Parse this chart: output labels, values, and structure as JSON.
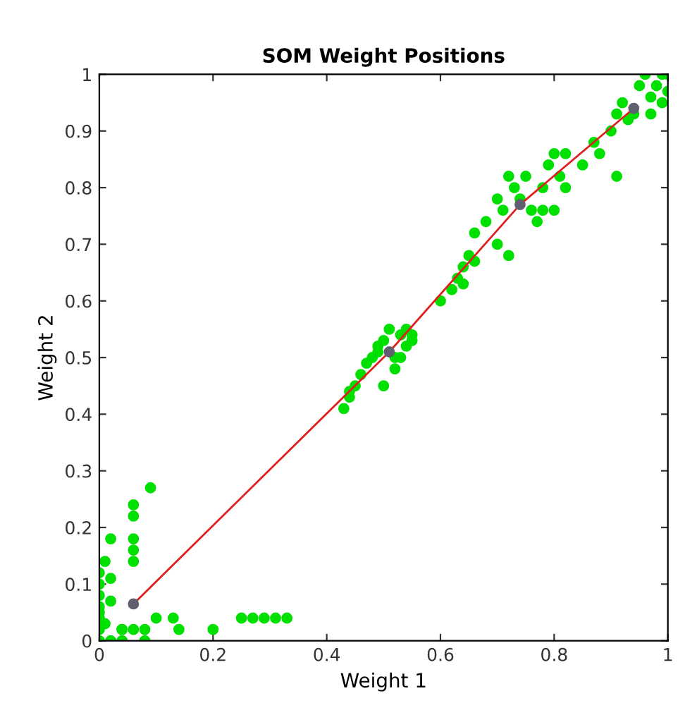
{
  "chart_data": {
    "type": "scatter",
    "title": "SOM Weight Positions",
    "xlabel": "Weight 1",
    "ylabel": "Weight 2",
    "xlim": [
      0,
      1
    ],
    "ylim": [
      0,
      1
    ],
    "xticks": [
      0,
      0.2,
      0.4,
      0.6,
      0.8,
      1
    ],
    "yticks": [
      0,
      0.1,
      0.2,
      0.3,
      0.4,
      0.5,
      0.6,
      0.7,
      0.8,
      0.9,
      1
    ],
    "grid": false,
    "marker": "circle",
    "series": [
      {
        "color": "#00e000",
        "x": [
          0.0,
          0.0,
          0.0,
          0.0,
          0.0,
          0.0,
          0.0,
          0.01,
          0.02,
          0.01,
          0.02,
          0.0,
          0.02,
          0.04,
          0.06,
          0.06,
          0.06,
          0.06,
          0.06,
          0.09,
          0.04,
          0.06,
          0.08,
          0.02,
          0.04,
          0.08,
          0.1,
          0.13,
          0.14,
          0.2,
          0.25,
          0.27,
          0.29,
          0.31,
          0.33,
          0.43,
          0.44,
          0.45,
          0.46,
          0.47,
          0.48,
          0.49,
          0.5,
          0.5,
          0.51,
          0.52,
          0.53,
          0.54,
          0.54,
          0.55,
          0.52,
          0.53,
          0.55,
          0.44,
          0.49,
          0.6,
          0.62,
          0.63,
          0.64,
          0.65,
          0.66,
          0.68,
          0.7,
          0.71,
          0.72,
          0.73,
          0.74,
          0.75,
          0.76,
          0.77,
          0.78,
          0.79,
          0.8,
          0.81,
          0.82,
          0.7,
          0.72,
          0.78,
          0.8,
          0.82,
          0.64,
          0.66,
          0.85,
          0.87,
          0.88,
          0.9,
          0.91,
          0.92,
          0.93,
          0.95,
          0.96,
          0.97,
          0.98,
          0.99,
          1.0,
          0.97,
          0.99,
          1.0,
          0.91,
          0.94
        ],
        "values": [
          0.0,
          0.02,
          0.04,
          0.06,
          0.08,
          0.1,
          0.12,
          0.14,
          0.18,
          0.03,
          0.07,
          0.05,
          0.11,
          0.02,
          0.24,
          0.22,
          0.18,
          0.16,
          0.14,
          0.27,
          0.0,
          0.02,
          0.0,
          0.0,
          0.02,
          0.02,
          0.04,
          0.04,
          0.02,
          0.02,
          0.04,
          0.04,
          0.04,
          0.04,
          0.04,
          0.41,
          0.43,
          0.45,
          0.47,
          0.49,
          0.5,
          0.52,
          0.53,
          0.45,
          0.55,
          0.5,
          0.54,
          0.52,
          0.55,
          0.54,
          0.48,
          0.5,
          0.53,
          0.44,
          0.51,
          0.6,
          0.62,
          0.64,
          0.66,
          0.68,
          0.72,
          0.74,
          0.78,
          0.76,
          0.82,
          0.8,
          0.78,
          0.82,
          0.76,
          0.74,
          0.8,
          0.84,
          0.86,
          0.82,
          0.86,
          0.7,
          0.68,
          0.76,
          0.76,
          0.8,
          0.63,
          0.67,
          0.84,
          0.88,
          0.86,
          0.9,
          0.93,
          0.95,
          0.92,
          0.98,
          1.0,
          0.96,
          0.98,
          1.0,
          0.97,
          0.93,
          0.95,
          1.0,
          0.82,
          0.93
        ]
      },
      {
        "type": "line",
        "color": "#e02020",
        "marker": "none",
        "x": [
          0.06,
          0.51,
          0.74,
          0.94
        ],
        "values": [
          0.065,
          0.51,
          0.77,
          0.94
        ]
      },
      {
        "color": "#606070",
        "x": [
          0.06,
          0.51,
          0.74,
          0.94
        ],
        "values": [
          0.065,
          0.51,
          0.77,
          0.94
        ]
      }
    ]
  }
}
